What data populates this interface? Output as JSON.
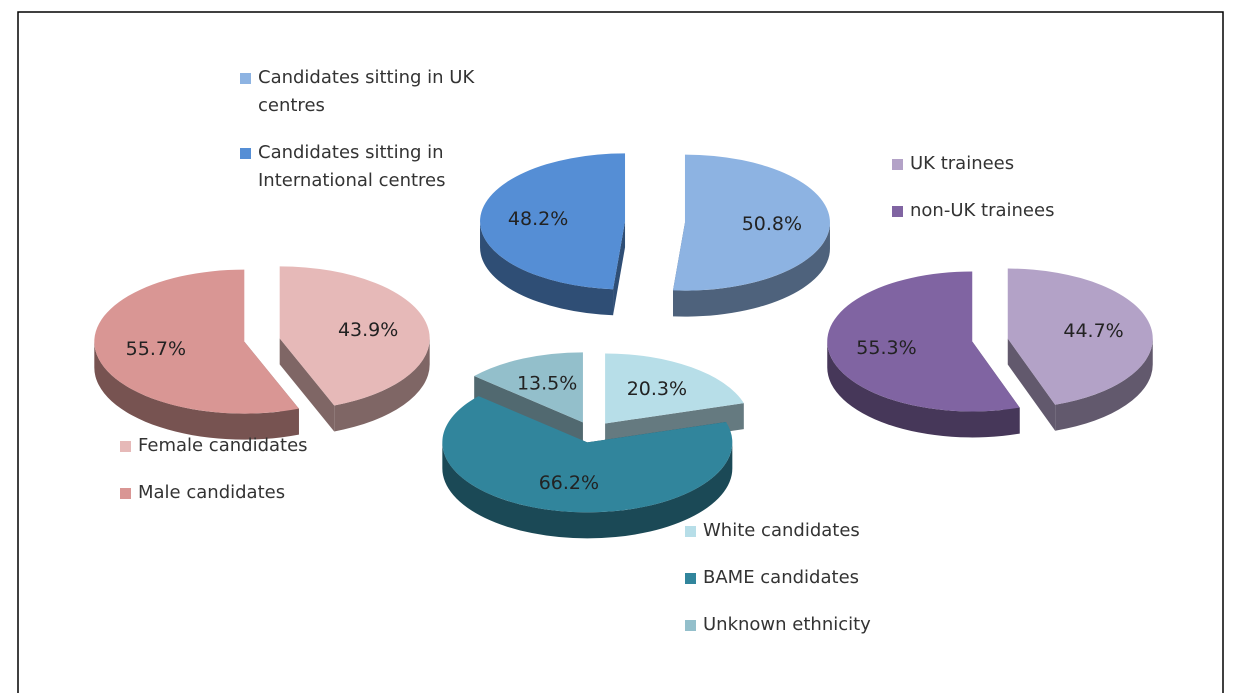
{
  "chart_data": [
    {
      "type": "pie",
      "categories": [
        "Candidates sitting in UK centres",
        "Candidates sitting in International centres"
      ],
      "values": [
        50.8,
        48.2
      ],
      "value_labels": [
        "50.8%",
        "48.2%"
      ],
      "colors": [
        "#8db3e2",
        "#558ed5"
      ]
    },
    {
      "type": "pie",
      "categories": [
        "Female candidates",
        "Male candidates"
      ],
      "values": [
        43.9,
        55.7
      ],
      "value_labels": [
        "43.9%",
        "55.7%"
      ],
      "colors": [
        "#e6b9b8",
        "#d99694"
      ]
    },
    {
      "type": "pie",
      "categories": [
        "White candidates",
        "BAME candidates",
        "Unknown ethnicity"
      ],
      "values": [
        20.3,
        66.2,
        13.5
      ],
      "value_labels": [
        "20.3%",
        "66.2%",
        "13.5%"
      ],
      "colors": [
        "#b7dee8",
        "#31859c",
        "#93bfcb"
      ]
    },
    {
      "type": "pie",
      "categories": [
        "UK trainees",
        "non-UK trainees"
      ],
      "values": [
        44.7,
        55.3
      ],
      "value_labels": [
        "44.7%",
        "55.3%"
      ],
      "colors": [
        "#b3a2c7",
        "#8064a2"
      ]
    }
  ]
}
